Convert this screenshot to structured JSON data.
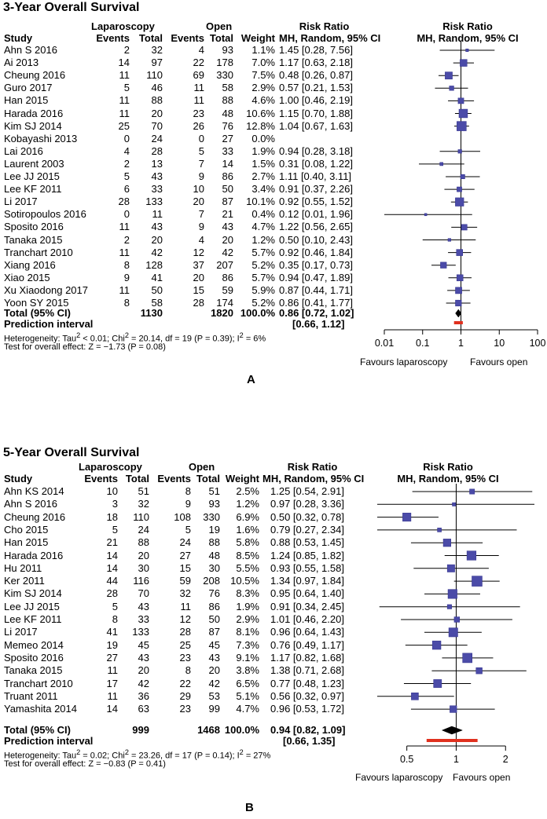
{
  "chart_data": [
    {
      "type": "forest",
      "panel_label": "A",
      "title": "3-Year Overall Survival",
      "headers": {
        "study": "Study",
        "group1": "Laparoscopy",
        "group2": "Open",
        "events": "Events",
        "total": "Total",
        "weight": "Weight",
        "rr_title": "Risk Ratio",
        "rr_method": "MH, Random, 95% CI",
        "plot_title": "Risk Ratio",
        "plot_method": "MH, Random, 95% CI"
      },
      "studies": [
        {
          "study": "Ahn S 2016",
          "e1": "2",
          "n1": "32",
          "e2": "4",
          "n2": "93",
          "weight": "1.1%",
          "ci_text": "1.45 [0.28, 7.56]",
          "rr": 1.45,
          "lo": 0.28,
          "hi": 7.56
        },
        {
          "study": "Ai 2013",
          "e1": "14",
          "n1": "97",
          "e2": "22",
          "n2": "178",
          "weight": "7.0%",
          "ci_text": "1.17 [0.63, 2.18]",
          "rr": 1.17,
          "lo": 0.63,
          "hi": 2.18
        },
        {
          "study": "Cheung 2016",
          "e1": "11",
          "n1": "110",
          "e2": "69",
          "n2": "330",
          "weight": "7.5%",
          "ci_text": "0.48 [0.26, 0.87]",
          "rr": 0.48,
          "lo": 0.26,
          "hi": 0.87
        },
        {
          "study": "Guro 2017",
          "e1": "5",
          "n1": "46",
          "e2": "11",
          "n2": "58",
          "weight": "2.9%",
          "ci_text": "0.57 [0.21, 1.53]",
          "rr": 0.57,
          "lo": 0.21,
          "hi": 1.53
        },
        {
          "study": "Han 2015",
          "e1": "11",
          "n1": "88",
          "e2": "11",
          "n2": "88",
          "weight": "4.6%",
          "ci_text": "1.00 [0.46, 2.19]",
          "rr": 1.0,
          "lo": 0.46,
          "hi": 2.19
        },
        {
          "study": "Harada 2016",
          "e1": "11",
          "n1": "20",
          "e2": "23",
          "n2": "48",
          "weight": "10.6%",
          "ci_text": "1.15 [0.70, 1.88]",
          "rr": 1.15,
          "lo": 0.7,
          "hi": 1.88
        },
        {
          "study": "Kim SJ 2014",
          "e1": "25",
          "n1": "70",
          "e2": "26",
          "n2": "76",
          "weight": "12.8%",
          "ci_text": "1.04 [0.67, 1.63]",
          "rr": 1.04,
          "lo": 0.67,
          "hi": 1.63
        },
        {
          "study": "Kobayashi 2013",
          "e1": "0",
          "n1": "24",
          "e2": "0",
          "n2": "27",
          "weight": "0.0%",
          "ci_text": "",
          "rr": null,
          "lo": null,
          "hi": null
        },
        {
          "study": "Lai 2016",
          "e1": "4",
          "n1": "28",
          "e2": "5",
          "n2": "33",
          "weight": "1.9%",
          "ci_text": "0.94 [0.28, 3.18]",
          "rr": 0.94,
          "lo": 0.28,
          "hi": 3.18
        },
        {
          "study": "Laurent 2003",
          "e1": "2",
          "n1": "13",
          "e2": "7",
          "n2": "14",
          "weight": "1.5%",
          "ci_text": "0.31 [0.08, 1.22]",
          "rr": 0.31,
          "lo": 0.08,
          "hi": 1.22
        },
        {
          "study": "Lee JJ 2015",
          "e1": "5",
          "n1": "43",
          "e2": "9",
          "n2": "86",
          "weight": "2.7%",
          "ci_text": "1.11 [0.40, 3.11]",
          "rr": 1.11,
          "lo": 0.4,
          "hi": 3.11
        },
        {
          "study": "Lee KF 2011",
          "e1": "6",
          "n1": "33",
          "e2": "10",
          "n2": "50",
          "weight": "3.4%",
          "ci_text": "0.91 [0.37, 2.26]",
          "rr": 0.91,
          "lo": 0.37,
          "hi": 2.26
        },
        {
          "study": "Li 2017",
          "e1": "28",
          "n1": "133",
          "e2": "20",
          "n2": "87",
          "weight": "10.1%",
          "ci_text": "0.92 [0.55, 1.52]",
          "rr": 0.92,
          "lo": 0.55,
          "hi": 1.52
        },
        {
          "study": "Sotiropoulos 2016",
          "e1": "0",
          "n1": "11",
          "e2": "7",
          "n2": "21",
          "weight": "0.4%",
          "ci_text": "0.12 [0.01, 1.96]",
          "rr": 0.12,
          "lo": 0.01,
          "hi": 1.96
        },
        {
          "study": "Sposito 2016",
          "e1": "11",
          "n1": "43",
          "e2": "9",
          "n2": "43",
          "weight": "4.7%",
          "ci_text": "1.22 [0.56, 2.65]",
          "rr": 1.22,
          "lo": 0.56,
          "hi": 2.65
        },
        {
          "study": "Tanaka 2015",
          "e1": "2",
          "n1": "20",
          "e2": "4",
          "n2": "20",
          "weight": "1.2%",
          "ci_text": "0.50 [0.10, 2.43]",
          "rr": 0.5,
          "lo": 0.1,
          "hi": 2.43
        },
        {
          "study": "Tranchart 2010",
          "e1": "11",
          "n1": "42",
          "e2": "12",
          "n2": "42",
          "weight": "5.7%",
          "ci_text": "0.92 [0.46, 1.84]",
          "rr": 0.92,
          "lo": 0.46,
          "hi": 1.84
        },
        {
          "study": "Xiang 2016",
          "e1": "8",
          "n1": "128",
          "e2": "37",
          "n2": "207",
          "weight": "5.2%",
          "ci_text": "0.35 [0.17, 0.73]",
          "rr": 0.35,
          "lo": 0.17,
          "hi": 0.73
        },
        {
          "study": "Xiao 2015",
          "e1": "9",
          "n1": "41",
          "e2": "20",
          "n2": "86",
          "weight": "5.7%",
          "ci_text": "0.94 [0.47, 1.89]",
          "rr": 0.94,
          "lo": 0.47,
          "hi": 1.89
        },
        {
          "study": "Xu Xiaodong 2017",
          "e1": "11",
          "n1": "50",
          "e2": "15",
          "n2": "59",
          "weight": "5.9%",
          "ci_text": "0.87 [0.44, 1.71]",
          "rr": 0.87,
          "lo": 0.44,
          "hi": 1.71
        },
        {
          "study": "Yoon SY 2015",
          "e1": "8",
          "n1": "58",
          "e2": "28",
          "n2": "174",
          "weight": "5.2%",
          "ci_text": "0.86 [0.41, 1.77]",
          "rr": 0.86,
          "lo": 0.41,
          "hi": 1.77
        }
      ],
      "total": {
        "label": "Total (95% CI)",
        "n1": "1130",
        "n2": "1820",
        "weight": "100.0%",
        "ci_text": "0.86 [0.72, 1.02]",
        "rr": 0.86,
        "lo": 0.72,
        "hi": 1.02
      },
      "prediction": {
        "label": "Prediction interval",
        "ci_text": "[0.66, 1.12]",
        "lo": 0.66,
        "hi": 1.12
      },
      "heterogeneity": {
        "prefix": "Heterogeneity: Tau",
        "tau_sup": "2",
        "tau_val": " < 0.01; Chi",
        "chi_sup": "2",
        "chi_val": " = 20.14, df = 19 (P = 0.39); I",
        "i_sup": "2",
        "i_val": " = 6%"
      },
      "overall_effect": "Test for overall effect: Z = −1.73 (P = 0.08)",
      "axis": {
        "scale": "log",
        "xlim": [
          0.01,
          100
        ],
        "ticks": [
          0.01,
          0.1,
          1,
          10,
          100
        ],
        "tick_labels": [
          "0.01",
          "0.1",
          "1",
          "10",
          "100"
        ]
      },
      "favours_left": "Favours laparoscopy",
      "favours_right": "Favours open"
    },
    {
      "type": "forest",
      "panel_label": "B",
      "title": "5-Year Overall Survival",
      "headers": {
        "study": "Study",
        "group1": "Laparoscopy",
        "group2": "Open",
        "events": "Events",
        "total": "Total",
        "weight": "Weight",
        "rr_title": "Risk Ratio",
        "rr_method": "MH, Random, 95% CI",
        "plot_title": "Risk Ratio",
        "plot_method": "MH, Random, 95% CI"
      },
      "studies": [
        {
          "study": "Ahn KS 2014",
          "e1": "10",
          "n1": "51",
          "e2": "8",
          "n2": "51",
          "weight": "2.5%",
          "ci_text": "1.25 [0.54, 2.91]",
          "rr": 1.25,
          "lo": 0.54,
          "hi": 2.91
        },
        {
          "study": "Ahn S 2016",
          "e1": "3",
          "n1": "32",
          "e2": "9",
          "n2": "93",
          "weight": "1.2%",
          "ci_text": "0.97 [0.28, 3.36]",
          "rr": 0.97,
          "lo": 0.28,
          "hi": 3.36
        },
        {
          "study": "Cheung 2016",
          "e1": "18",
          "n1": "110",
          "e2": "108",
          "n2": "330",
          "weight": "6.9%",
          "ci_text": "0.50 [0.32, 0.78]",
          "rr": 0.5,
          "lo": 0.32,
          "hi": 0.78
        },
        {
          "study": "Cho 2015",
          "e1": "5",
          "n1": "24",
          "e2": "5",
          "n2": "19",
          "weight": "1.6%",
          "ci_text": "0.79 [0.27, 2.34]",
          "rr": 0.79,
          "lo": 0.27,
          "hi": 2.34
        },
        {
          "study": "Han 2015",
          "e1": "21",
          "n1": "88",
          "e2": "24",
          "n2": "88",
          "weight": "5.8%",
          "ci_text": "0.88 [0.53, 1.45]",
          "rr": 0.88,
          "lo": 0.53,
          "hi": 1.45
        },
        {
          "study": "Harada 2016",
          "e1": "14",
          "n1": "20",
          "e2": "27",
          "n2": "48",
          "weight": "8.5%",
          "ci_text": "1.24 [0.85, 1.82]",
          "rr": 1.24,
          "lo": 0.85,
          "hi": 1.82
        },
        {
          "study": "Hu 2011",
          "e1": "14",
          "n1": "30",
          "e2": "15",
          "n2": "30",
          "weight": "5.5%",
          "ci_text": "0.93 [0.55, 1.58]",
          "rr": 0.93,
          "lo": 0.55,
          "hi": 1.58
        },
        {
          "study": "Ker 2011",
          "e1": "44",
          "n1": "116",
          "e2": "59",
          "n2": "208",
          "weight": "10.5%",
          "ci_text": "1.34 [0.97, 1.84]",
          "rr": 1.34,
          "lo": 0.97,
          "hi": 1.84
        },
        {
          "study": "Kim SJ 2014",
          "e1": "28",
          "n1": "70",
          "e2": "32",
          "n2": "76",
          "weight": "8.3%",
          "ci_text": "0.95 [0.64, 1.40]",
          "rr": 0.95,
          "lo": 0.64,
          "hi": 1.4
        },
        {
          "study": "Lee JJ 2015",
          "e1": "5",
          "n1": "43",
          "e2": "11",
          "n2": "86",
          "weight": "1.9%",
          "ci_text": "0.91 [0.34, 2.45]",
          "rr": 0.91,
          "lo": 0.34,
          "hi": 2.45
        },
        {
          "study": "Lee KF 2011",
          "e1": "8",
          "n1": "33",
          "e2": "12",
          "n2": "50",
          "weight": "2.9%",
          "ci_text": "1.01 [0.46, 2.20]",
          "rr": 1.01,
          "lo": 0.46,
          "hi": 2.2
        },
        {
          "study": "Li 2017",
          "e1": "41",
          "n1": "133",
          "e2": "28",
          "n2": "87",
          "weight": "8.1%",
          "ci_text": "0.96 [0.64, 1.43]",
          "rr": 0.96,
          "lo": 0.64,
          "hi": 1.43
        },
        {
          "study": "Memeo 2014",
          "e1": "19",
          "n1": "45",
          "e2": "25",
          "n2": "45",
          "weight": "7.3%",
          "ci_text": "0.76 [0.49, 1.17]",
          "rr": 0.76,
          "lo": 0.49,
          "hi": 1.17
        },
        {
          "study": "Sposito 2016",
          "e1": "27",
          "n1": "43",
          "e2": "23",
          "n2": "43",
          "weight": "9.1%",
          "ci_text": "1.17 [0.82, 1.68]",
          "rr": 1.17,
          "lo": 0.82,
          "hi": 1.68
        },
        {
          "study": "Tanaka 2015",
          "e1": "11",
          "n1": "20",
          "e2": "8",
          "n2": "20",
          "weight": "3.8%",
          "ci_text": "1.38 [0.71, 2.68]",
          "rr": 1.38,
          "lo": 0.71,
          "hi": 2.68
        },
        {
          "study": "Tranchart 2010",
          "e1": "17",
          "n1": "42",
          "e2": "22",
          "n2": "42",
          "weight": "6.5%",
          "ci_text": "0.77 [0.48, 1.23]",
          "rr": 0.77,
          "lo": 0.48,
          "hi": 1.23
        },
        {
          "study": "Truant 2011",
          "e1": "11",
          "n1": "36",
          "e2": "29",
          "n2": "53",
          "weight": "5.1%",
          "ci_text": "0.56 [0.32, 0.97]",
          "rr": 0.56,
          "lo": 0.32,
          "hi": 0.97
        },
        {
          "study": "Yamashita 2014",
          "e1": "14",
          "n1": "63",
          "e2": "23",
          "n2": "99",
          "weight": "4.7%",
          "ci_text": "0.96 [0.53, 1.72]",
          "rr": 0.96,
          "lo": 0.53,
          "hi": 1.72
        }
      ],
      "total": {
        "label": "Total (95% CI)",
        "n1": "999",
        "n2": "1468",
        "weight": "100.0%",
        "ci_text": "0.94 [0.82, 1.09]",
        "rr": 0.94,
        "lo": 0.82,
        "hi": 1.09
      },
      "prediction": {
        "label": "Prediction interval",
        "ci_text": "[0.66, 1.35]",
        "lo": 0.66,
        "hi": 1.35
      },
      "heterogeneity": {
        "prefix": "Heterogeneity: Tau",
        "tau_sup": "2",
        "tau_val": " = 0.02; Chi",
        "chi_sup": "2",
        "chi_val": " = 23.26, df = 17 (P = 0.14); I",
        "i_sup": "2",
        "i_val": " = 27%"
      },
      "overall_effect": "Test for overall effect: Z = −0.83 (P = 0.41)",
      "axis": {
        "scale": "log",
        "xlim": [
          0.33,
          3.0
        ],
        "ticks": [
          0.5,
          1,
          2
        ],
        "tick_labels": [
          "0.5",
          "1",
          "2"
        ]
      },
      "favours_left": "Favours laparoscopy",
      "favours_right": "Favours open"
    }
  ],
  "colors": {
    "box": "#4b4ba8",
    "box_stroke": "#2e2e8a",
    "prediction": "#e0301e",
    "line": "#000000"
  }
}
